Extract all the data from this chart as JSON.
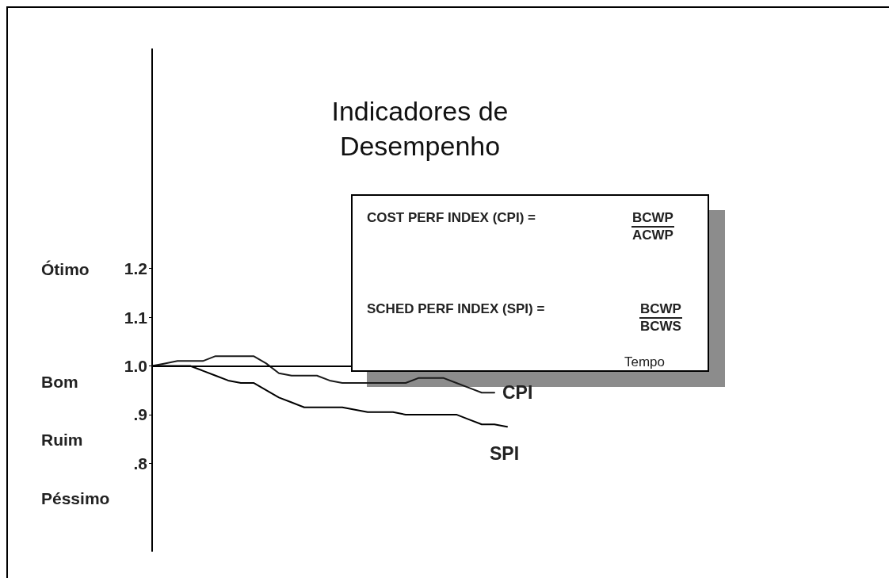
{
  "chart_data": {
    "type": "line",
    "title": "Indicadores de\nDesempenho",
    "categories": [
      null,
      null,
      null,
      null,
      null,
      null,
      null,
      null,
      null,
      null,
      null,
      null,
      null,
      null,
      null,
      null,
      null,
      null,
      null,
      null,
      null,
      null,
      null,
      null,
      null,
      null,
      null,
      null,
      null
    ],
    "series": [
      {
        "name": "CPI",
        "color": "#1a1a1a",
        "values": [
          1.0,
          1.005,
          1.01,
          1.01,
          1.01,
          1.02,
          1.02,
          1.02,
          1.02,
          1.005,
          0.985,
          0.98,
          0.98,
          0.98,
          0.97,
          0.965,
          0.965,
          0.965,
          0.965,
          0.965,
          0.965,
          0.975,
          0.975,
          0.975,
          0.965,
          0.955,
          0.945,
          0.945,
          null
        ]
      },
      {
        "name": "SPI",
        "color": "#000000",
        "values": [
          1.0,
          1.0,
          1.0,
          1.0,
          0.99,
          0.98,
          0.97,
          0.965,
          0.965,
          0.95,
          0.935,
          0.925,
          0.915,
          0.915,
          0.915,
          0.915,
          0.91,
          0.905,
          0.905,
          0.905,
          0.9,
          0.9,
          0.9,
          0.9,
          0.9,
          0.89,
          0.88,
          0.88,
          0.875
        ]
      }
    ],
    "ylim": [
      0.62,
      1.65
    ],
    "yticks": [
      {
        "value": 0.8,
        "label": ".8"
      },
      {
        "value": 0.9,
        "label": ".9"
      },
      {
        "value": 1.0,
        "label": "1.0"
      },
      1.1,
      1.2
    ],
    "ref_lines": [
      {
        "axis": "y",
        "value": 1.0,
        "color": "#000000"
      }
    ],
    "annotations": [
      "Ótimo",
      "Bom",
      "Ruim",
      "Péssimo",
      "COST PERF INDEX (CPI) =",
      "BCWP",
      "ACWP",
      "SCHED PERF INDEX (SPI) =",
      "BCWP",
      "BCWS",
      "Tempo"
    ],
    "grid": false,
    "legend": false,
    "marker": "none",
    "line_style": "solid",
    "tick_labels": "y"
  }
}
